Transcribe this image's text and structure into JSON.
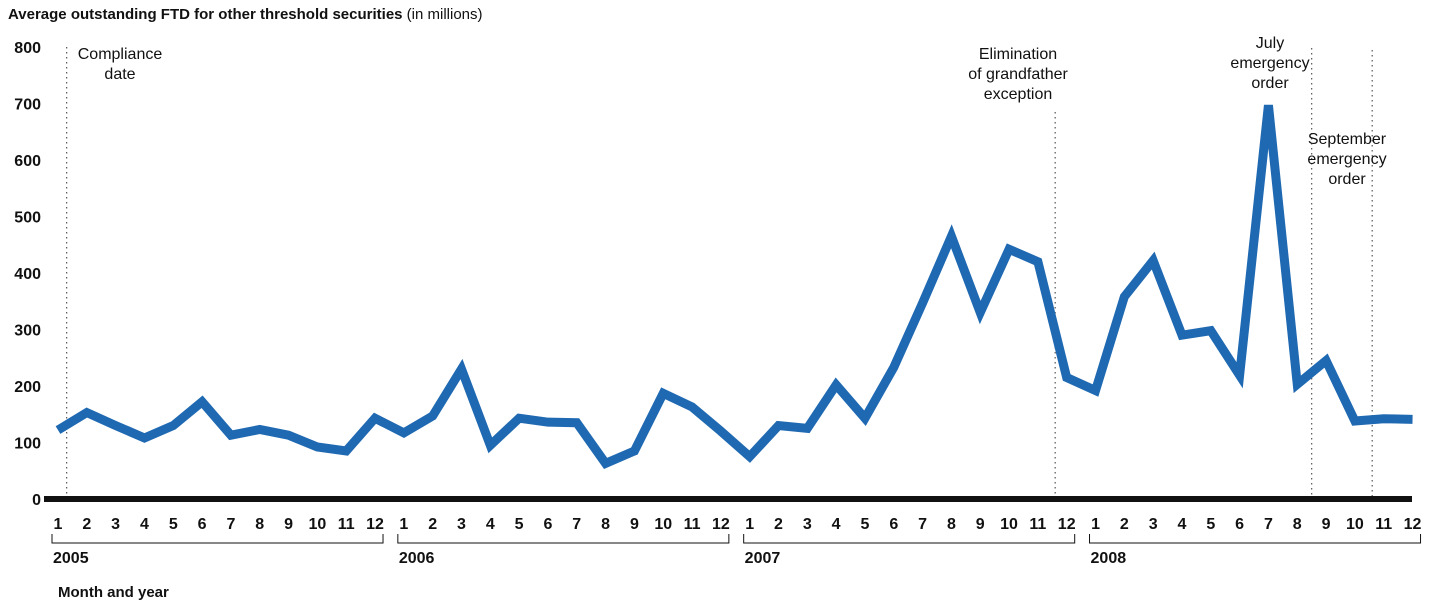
{
  "chart_data": {
    "type": "line",
    "title": "Average outstanding FTD for other threshold securities",
    "title_unit": "(in millions)",
    "xlabel": "Month and year",
    "ylabel": "",
    "ylim": [
      0,
      800
    ],
    "yticks": [
      0,
      100,
      200,
      300,
      400,
      500,
      600,
      700,
      800
    ],
    "grid": false,
    "years": [
      "2005",
      "2006",
      "2007",
      "2008"
    ],
    "month_labels": [
      "1",
      "2",
      "3",
      "4",
      "5",
      "6",
      "7",
      "8",
      "9",
      "10",
      "11",
      "12"
    ],
    "line_color": "#1f69b2",
    "series": [
      {
        "values": [
          122,
          153,
          130,
          108,
          130,
          172,
          113,
          123,
          113,
          92,
          85,
          143,
          117,
          147,
          230,
          95,
          143,
          136,
          135,
          63,
          85,
          187,
          163,
          120,
          75,
          130,
          125,
          202,
          143,
          233,
          347,
          465,
          330,
          442,
          420,
          215,
          192,
          358,
          422,
          290,
          298,
          219,
          697,
          203,
          245,
          138,
          142,
          141
        ]
      }
    ],
    "annotations": [
      {
        "lines": [
          "Compliance",
          "date"
        ],
        "x_month": 1.3
      },
      {
        "lines": [
          "Elimination",
          "of grandfather",
          "exception"
        ],
        "x_month": 35.6
      },
      {
        "lines": [
          "July",
          "emergency",
          "order"
        ],
        "x_month": 44.5
      },
      {
        "lines": [
          "September",
          "emergency",
          "order"
        ],
        "x_month": 46.6
      }
    ]
  }
}
